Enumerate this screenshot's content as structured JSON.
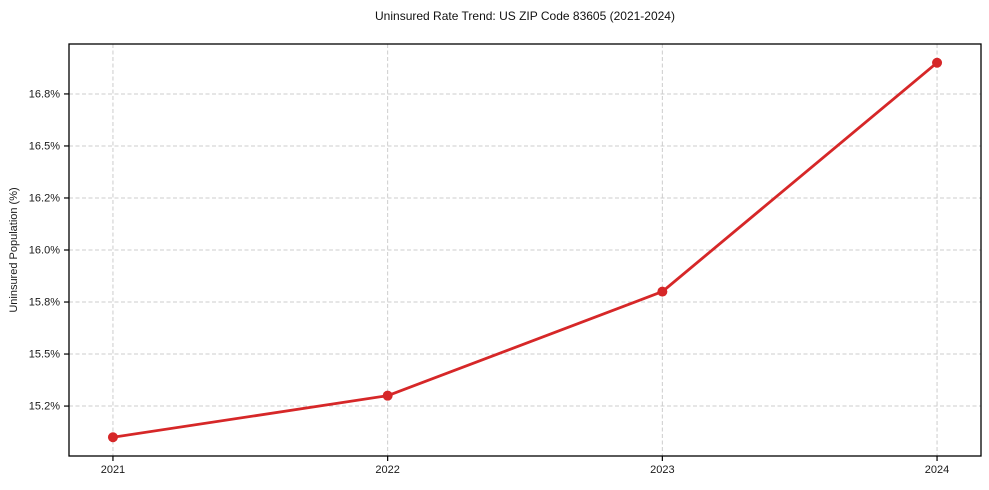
{
  "chart_data": {
    "type": "line",
    "title": "Uninsured Rate Trend: US ZIP Code 83605 (2021-2024)",
    "xlabel": "",
    "ylabel": "Uninsured Population (%)",
    "categories": [
      "2021",
      "2022",
      "2023",
      "2024"
    ],
    "x": [
      2021,
      2022,
      2023,
      2024
    ],
    "series": [
      {
        "name": "Uninsured Rate",
        "values": [
          15.1,
          15.3,
          15.8,
          16.9
        ],
        "color": "#d62728",
        "marker": "circle",
        "marker_radius": 5,
        "line_width": 2.8
      }
    ],
    "xlim": [
      2020.84,
      2024.16
    ],
    "ylim": [
      15.01,
      16.99
    ],
    "x_ticks": [
      {
        "value": 2021,
        "label": "2021"
      },
      {
        "value": 2022,
        "label": "2022"
      },
      {
        "value": 2023,
        "label": "2023"
      },
      {
        "value": 2024,
        "label": "2024"
      }
    ],
    "y_ticks": [
      {
        "value": 15.25,
        "label": "15.2%"
      },
      {
        "value": 15.5,
        "label": "15.5%"
      },
      {
        "value": 15.75,
        "label": "15.8%"
      },
      {
        "value": 16.0,
        "label": "16.0%"
      },
      {
        "value": 16.25,
        "label": "16.2%"
      },
      {
        "value": 16.5,
        "label": "16.5%"
      },
      {
        "value": 16.75,
        "label": "16.8%"
      }
    ],
    "grid": true,
    "grid_color": "#cccccc",
    "grid_dash": "4 2.5",
    "legend": false,
    "background": "#ffffff",
    "axis_color": "#000000",
    "tick_label_color": "#1a1a1a",
    "tick_font_size": 11
  }
}
